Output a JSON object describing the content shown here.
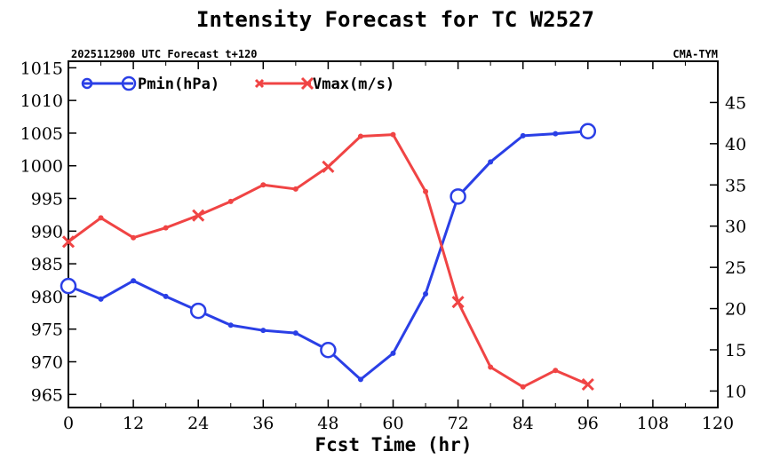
{
  "chart_data": {
    "type": "line",
    "title": "Intensity Forecast for TC W2527",
    "subtitle_left": "2025112900 UTC Forecast t+120",
    "subtitle_right": "CMA-TYM",
    "xlabel": "Fcst Time (hr)",
    "xlim": [
      0,
      120
    ],
    "xticks": [
      0,
      12,
      24,
      36,
      48,
      60,
      72,
      84,
      96,
      108,
      120
    ],
    "xtick_labels": [
      "0",
      "12",
      "24",
      "36",
      "48",
      "60",
      "72",
      "84",
      "96",
      "108",
      "120"
    ],
    "y_left": {
      "ylim": [
        963,
        1016
      ],
      "ticks": [
        965,
        970,
        975,
        980,
        985,
        990,
        995,
        1000,
        1005,
        1010,
        1015
      ],
      "tick_labels": [
        "965",
        "970",
        "975",
        "980",
        "985",
        "990",
        "995",
        "1000",
        "1005",
        "1010",
        "1015"
      ]
    },
    "y_right": {
      "ylim": [
        8,
        50
      ],
      "ticks": [
        10,
        15,
        20,
        25,
        30,
        35,
        40,
        45
      ],
      "tick_labels": [
        "10",
        "15",
        "20",
        "25",
        "30",
        "35",
        "40",
        "45"
      ]
    },
    "legend_position": "top-left",
    "series": [
      {
        "name": "Pmin(hPa)",
        "axis": "left",
        "color": "#2a3fe6",
        "marker": "circle",
        "x": [
          0,
          6,
          12,
          18,
          24,
          30,
          36,
          42,
          48,
          54,
          60,
          66,
          72,
          78,
          84,
          90,
          96
        ],
        "values": [
          981.6,
          979.6,
          982.4,
          980.0,
          977.8,
          975.6,
          974.8,
          974.4,
          971.8,
          967.3,
          971.3,
          980.4,
          995.3,
          1000.6,
          1004.6,
          1004.9,
          1005.3
        ],
        "major_marker_x": [
          0,
          24,
          48,
          72,
          96
        ]
      },
      {
        "name": "Vmax(m/s)",
        "axis": "right",
        "color": "#f04444",
        "marker": "x",
        "x": [
          0,
          6,
          12,
          18,
          24,
          30,
          36,
          42,
          48,
          54,
          60,
          66,
          72,
          78,
          84,
          90,
          96
        ],
        "values": [
          28.1,
          31.0,
          28.6,
          29.8,
          31.3,
          33.0,
          35.0,
          34.5,
          37.2,
          40.9,
          41.1,
          34.2,
          20.8,
          12.9,
          10.5,
          12.5,
          10.8
        ],
        "major_marker_x": [
          0,
          24,
          48,
          72,
          96
        ]
      }
    ]
  }
}
